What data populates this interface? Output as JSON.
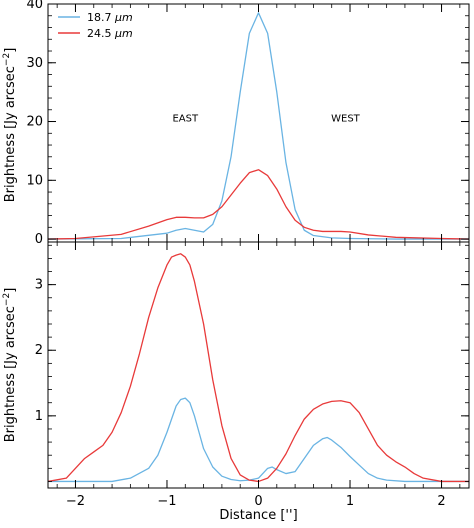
{
  "chart_data": [
    {
      "type": "line",
      "panel": "top",
      "title": "",
      "xlabel": "",
      "ylabel": "Brightness [Jy arcsec⁻²]",
      "ylabel_main": "Brightness [Jy arcsec",
      "ylabel_sup": "−2",
      "ylabel_close": "]",
      "xlim": [
        -2.3,
        2.3
      ],
      "ylim": [
        -0.5,
        40
      ],
      "yticks": [
        0,
        10,
        20,
        30,
        40
      ],
      "ytick_labels": [
        "0",
        "10",
        "20",
        "30",
        "40"
      ],
      "xticks": [
        -2,
        -1,
        0,
        1,
        2
      ],
      "xtick_labels": [
        "",
        "",
        "",
        "",
        ""
      ],
      "grid": false,
      "legend": "top-left",
      "annotations": [
        {
          "text": "EAST",
          "x": -0.8,
          "y": 20
        },
        {
          "text": "WEST",
          "x": 0.95,
          "y": 20
        }
      ],
      "series": [
        {
          "name_text": "18.7",
          "name_unit": "μm",
          "color": "#6ab4e3",
          "x": [
            -2.3,
            -1.5,
            -1.0,
            -0.9,
            -0.8,
            -0.7,
            -0.6,
            -0.5,
            -0.4,
            -0.3,
            -0.2,
            -0.1,
            0.0,
            0.1,
            0.2,
            0.3,
            0.4,
            0.5,
            0.6,
            0.8,
            1.0,
            1.5,
            2.3
          ],
          "y": [
            0,
            0.1,
            1.0,
            1.5,
            1.8,
            1.5,
            1.2,
            2.5,
            6.5,
            14,
            25,
            35,
            38.5,
            35,
            25,
            13,
            5,
            1.5,
            0.6,
            0.2,
            0.1,
            0,
            0
          ]
        },
        {
          "name_text": "24.5",
          "name_unit": "μm",
          "color": "#e83a3a",
          "x": [
            -2.3,
            -2.0,
            -1.5,
            -1.2,
            -1.0,
            -0.9,
            -0.8,
            -0.7,
            -0.6,
            -0.5,
            -0.4,
            -0.3,
            -0.2,
            -0.1,
            0.0,
            0.1,
            0.2,
            0.3,
            0.4,
            0.5,
            0.6,
            0.7,
            0.8,
            0.9,
            1.0,
            1.2,
            1.5,
            2.0,
            2.3
          ],
          "y": [
            0,
            0.1,
            0.8,
            2.2,
            3.3,
            3.7,
            3.7,
            3.6,
            3.6,
            4.2,
            5.5,
            7.5,
            9.5,
            11.3,
            11.8,
            10.8,
            8.5,
            5.5,
            3.2,
            2.0,
            1.5,
            1.3,
            1.3,
            1.3,
            1.2,
            0.7,
            0.3,
            0.1,
            0
          ]
        }
      ]
    },
    {
      "type": "line",
      "panel": "bottom",
      "title": "",
      "xlabel": "Distance ['']",
      "xlabel_main": "Distance [",
      "xlabel_unit": "''",
      "xlabel_close": "]",
      "ylabel": "Brightness [Jy arcsec⁻²]",
      "ylabel_main": "Brightness [Jy arcsec",
      "ylabel_sup": "−2",
      "ylabel_close": "]",
      "xlim": [
        -2.3,
        2.3
      ],
      "ylim": [
        -0.1,
        3.65
      ],
      "yticks": [
        1,
        2,
        3
      ],
      "ytick_labels": [
        "1",
        "2",
        "3"
      ],
      "xticks": [
        -2,
        -1,
        0,
        1,
        2
      ],
      "xtick_labels": [
        "−2",
        "−1",
        "0",
        "1",
        "2"
      ],
      "grid": false,
      "series": [
        {
          "color": "#6ab4e3",
          "x": [
            -2.3,
            -1.6,
            -1.4,
            -1.2,
            -1.1,
            -1.0,
            -0.95,
            -0.9,
            -0.85,
            -0.8,
            -0.75,
            -0.7,
            -0.65,
            -0.6,
            -0.5,
            -0.4,
            -0.3,
            -0.2,
            -0.1,
            0.0,
            0.1,
            0.15,
            0.2,
            0.3,
            0.4,
            0.5,
            0.6,
            0.7,
            0.75,
            0.8,
            0.9,
            1.0,
            1.1,
            1.2,
            1.3,
            1.4,
            1.6,
            2.3
          ],
          "y": [
            0,
            0,
            0.05,
            0.2,
            0.4,
            0.75,
            0.95,
            1.15,
            1.25,
            1.27,
            1.2,
            1.0,
            0.75,
            0.5,
            0.22,
            0.08,
            0.03,
            0.01,
            0.02,
            0.05,
            0.2,
            0.22,
            0.18,
            0.12,
            0.15,
            0.35,
            0.55,
            0.65,
            0.67,
            0.63,
            0.52,
            0.38,
            0.25,
            0.12,
            0.05,
            0.02,
            0,
            0
          ]
        },
        {
          "color": "#e83a3a",
          "x": [
            -2.3,
            -2.1,
            -2.0,
            -1.9,
            -1.8,
            -1.7,
            -1.6,
            -1.5,
            -1.4,
            -1.3,
            -1.2,
            -1.1,
            -1.0,
            -0.95,
            -0.9,
            -0.85,
            -0.8,
            -0.75,
            -0.7,
            -0.6,
            -0.5,
            -0.4,
            -0.3,
            -0.2,
            -0.1,
            0.0,
            0.1,
            0.2,
            0.3,
            0.4,
            0.5,
            0.6,
            0.7,
            0.8,
            0.9,
            1.0,
            1.1,
            1.2,
            1.3,
            1.4,
            1.5,
            1.6,
            1.7,
            1.8,
            2.0,
            2.3
          ],
          "y": [
            0,
            0.05,
            0.2,
            0.35,
            0.45,
            0.55,
            0.75,
            1.05,
            1.45,
            1.95,
            2.5,
            2.95,
            3.3,
            3.42,
            3.45,
            3.47,
            3.42,
            3.3,
            3.05,
            2.4,
            1.55,
            0.85,
            0.35,
            0.1,
            0.02,
            0,
            0.05,
            0.2,
            0.42,
            0.7,
            0.95,
            1.1,
            1.18,
            1.22,
            1.23,
            1.2,
            1.05,
            0.8,
            0.55,
            0.4,
            0.3,
            0.22,
            0.12,
            0.05,
            0,
            0
          ]
        }
      ]
    }
  ]
}
